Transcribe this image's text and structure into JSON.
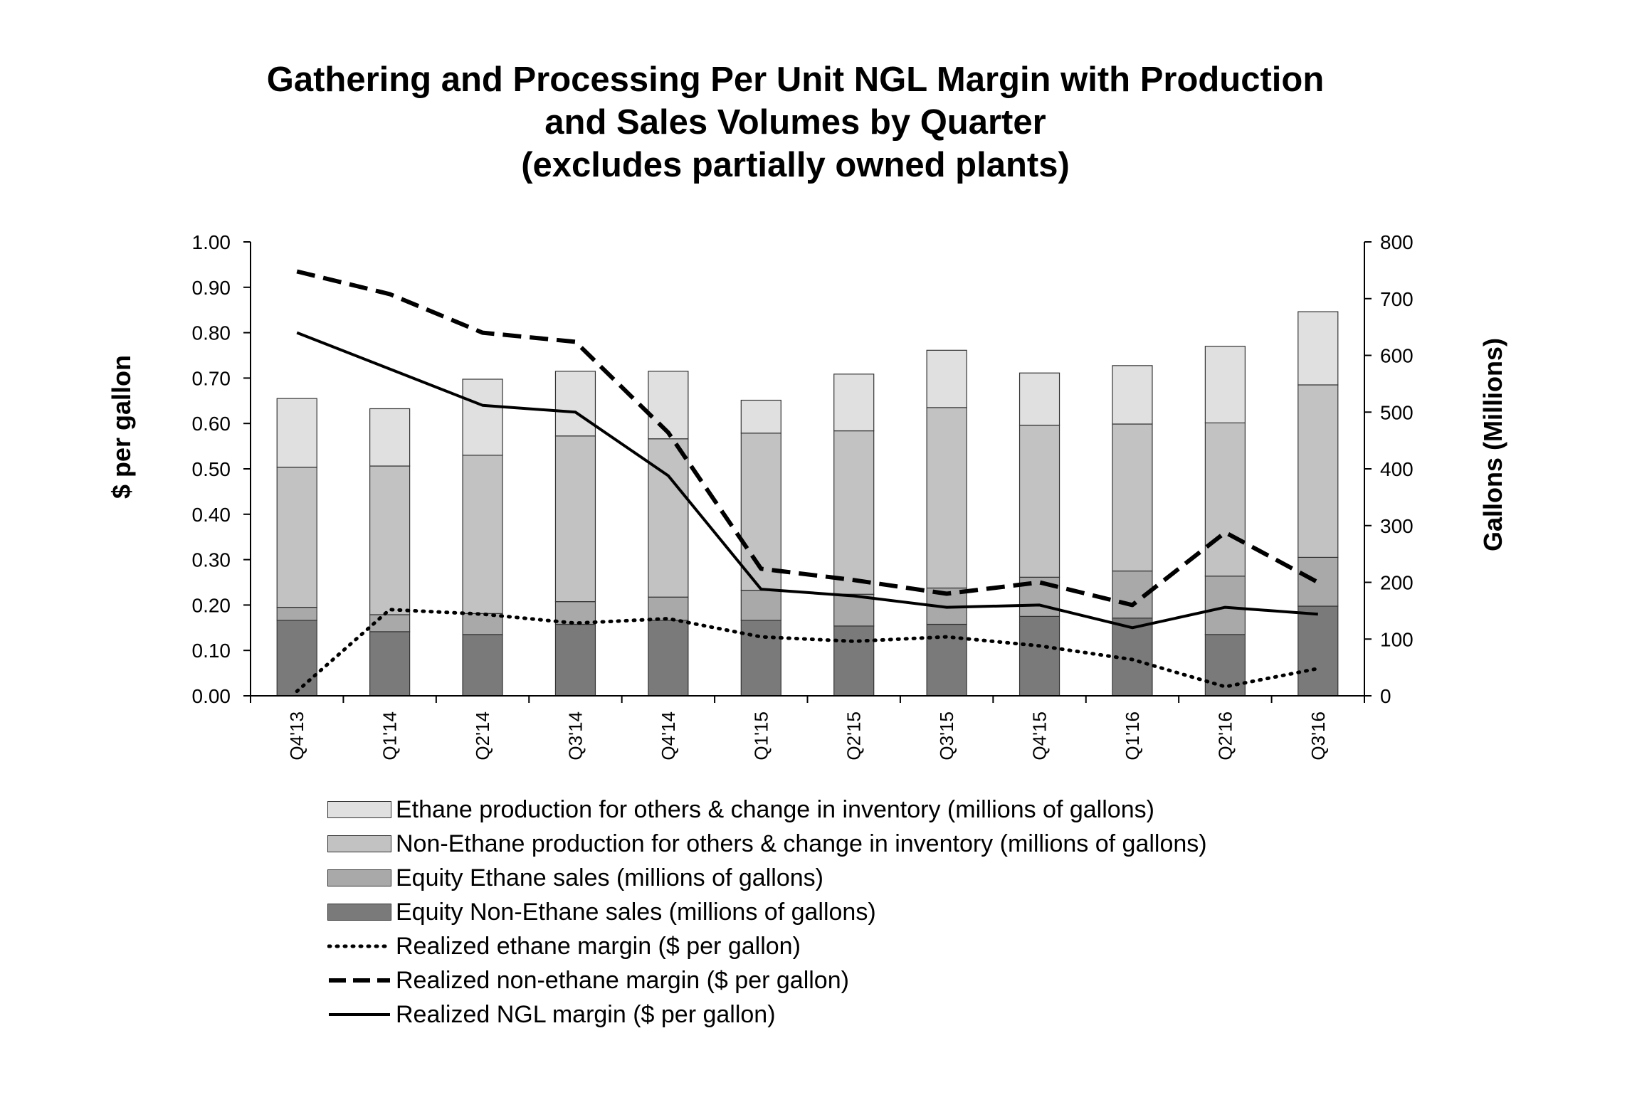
{
  "chart_data": {
    "type": "bar",
    "title": "Gathering and Processing Per Unit NGL Margin with Production and Sales Volumes by Quarter (excludes partially owned plants)",
    "title_lines": [
      "Gathering and Processing Per Unit NGL Margin with Production",
      "and Sales Volumes by Quarter",
      "(excludes partially owned plants)"
    ],
    "ylabel_left": "$ per gallon",
    "ylabel_right": "Gallons (Millions)",
    "ylim_left": [
      0,
      1.0
    ],
    "ylim_right": [
      0,
      800
    ],
    "yticks_left": [
      "0.00",
      "0.10",
      "0.20",
      "0.30",
      "0.40",
      "0.50",
      "0.60",
      "0.70",
      "0.80",
      "0.90",
      "1.00"
    ],
    "yticks_right": [
      "0",
      "100",
      "200",
      "300",
      "400",
      "500",
      "600",
      "700",
      "800"
    ],
    "categories": [
      "Q4'13",
      "Q1'14",
      "Q2'14",
      "Q3'14",
      "Q4'14",
      "Q1'15",
      "Q2'15",
      "Q3'15",
      "Q4'15",
      "Q1'16",
      "Q2'16",
      "Q3'16"
    ],
    "bar_series": [
      {
        "name": "Equity Non-Ethane sales (millions of gallons)",
        "color": "#7a7a7a",
        "values": [
          133,
          113,
          108,
          126,
          133,
          133,
          123,
          126,
          140,
          137,
          108,
          158
        ]
      },
      {
        "name": "Equity Ethane sales (millions of gallons)",
        "color": "#a9a9a9",
        "values": [
          23,
          30,
          37,
          40,
          41,
          53,
          56,
          64,
          69,
          83,
          103,
          86
        ]
      },
      {
        "name": "Non-Ethane production for others & change in inventory (millions of gallons)",
        "color": "#c2c2c2",
        "values": [
          247,
          262,
          279,
          292,
          279,
          277,
          288,
          318,
          268,
          259,
          270,
          304
        ]
      },
      {
        "name": "Ethane production for others & change in inventory (millions of gallons)",
        "color": "#e0e0e0",
        "values": [
          121,
          101,
          134,
          114,
          119,
          58,
          100,
          101,
          92,
          103,
          135,
          129
        ]
      }
    ],
    "line_series": [
      {
        "name": "Realized ethane margin ($ per gallon)",
        "style": "dotted",
        "values": [
          0.01,
          0.19,
          0.18,
          0.16,
          0.17,
          0.13,
          0.12,
          0.13,
          0.11,
          0.08,
          0.02,
          0.06
        ]
      },
      {
        "name": "Realized non-ethane margin ($ per gallon)",
        "style": "dashed",
        "values": [
          0.935,
          0.885,
          0.8,
          0.78,
          0.58,
          0.28,
          0.255,
          0.225,
          0.25,
          0.2,
          0.36,
          0.25
        ]
      },
      {
        "name": "Realized NGL margin ($ per gallon)",
        "style": "solid",
        "values": [
          0.8,
          0.72,
          0.64,
          0.625,
          0.485,
          0.235,
          0.22,
          0.195,
          0.2,
          0.15,
          0.195,
          0.18
        ]
      }
    ]
  },
  "legend": [
    {
      "label": "Ethane production for others & change in inventory (millions of gallons)",
      "kind": "bar",
      "color": "#e0e0e0"
    },
    {
      "label": "Non-Ethane production for others & change in inventory (millions of gallons)",
      "kind": "bar",
      "color": "#c2c2c2"
    },
    {
      "label": "Equity Ethane sales (millions of gallons)",
      "kind": "bar",
      "color": "#a9a9a9"
    },
    {
      "label": "Equity Non-Ethane sales (millions of gallons)",
      "kind": "bar",
      "color": "#7a7a7a"
    },
    {
      "label": "Realized ethane margin ($ per gallon)",
      "kind": "line",
      "style": "dotted"
    },
    {
      "label": "Realized non-ethane margin ($ per gallon)",
      "kind": "line",
      "style": "dashed"
    },
    {
      "label": "Realized NGL margin ($ per gallon)",
      "kind": "line",
      "style": "solid"
    }
  ]
}
